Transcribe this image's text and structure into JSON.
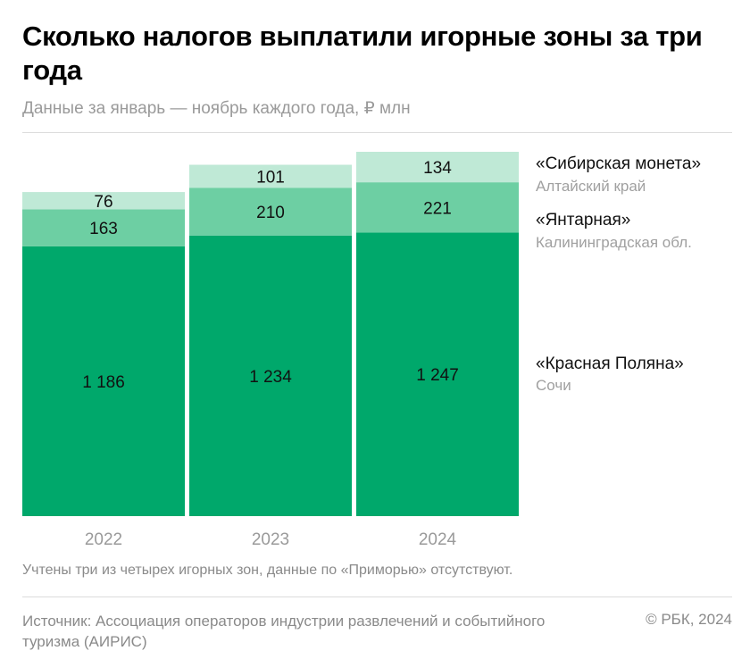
{
  "title": "Сколько налогов выплатили игорные зоны за три года",
  "subtitle": "Данные за январь — ноябрь каждого года, ₽ млн",
  "note": "Учтены три из четырех игорных зон, данные по «Приморью» отсутствуют.",
  "source": "Источник: Ассоциация операторов индустрии развлечений и событийного туризма (АИРИС)",
  "copyright": "© РБК, 2024",
  "colors": {
    "krasnaya": "#00a86b",
    "yantarnaya": "#6dcfa3",
    "sibirskaya": "#bfe9d6"
  },
  "chart_data": {
    "type": "bar",
    "stacked": true,
    "categories": [
      "2022",
      "2023",
      "2024"
    ],
    "series": [
      {
        "name": "«Красная Поляна»",
        "region": "Сочи",
        "values": [
          1186,
          1234,
          1247
        ],
        "value_labels": [
          "1 186",
          "1 234",
          "1 247"
        ]
      },
      {
        "name": "«Янтарная»",
        "region": "Калининградская обл.",
        "values": [
          163,
          210,
          221
        ],
        "value_labels": [
          "163",
          "210",
          "221"
        ]
      },
      {
        "name": "«Сибирская монета»",
        "region": "Алтайский край",
        "values": [
          76,
          101,
          134
        ],
        "value_labels": [
          "76",
          "101",
          "134"
        ]
      }
    ],
    "ylabel": "₽ млн",
    "ylim": [
      0,
      1602
    ]
  }
}
